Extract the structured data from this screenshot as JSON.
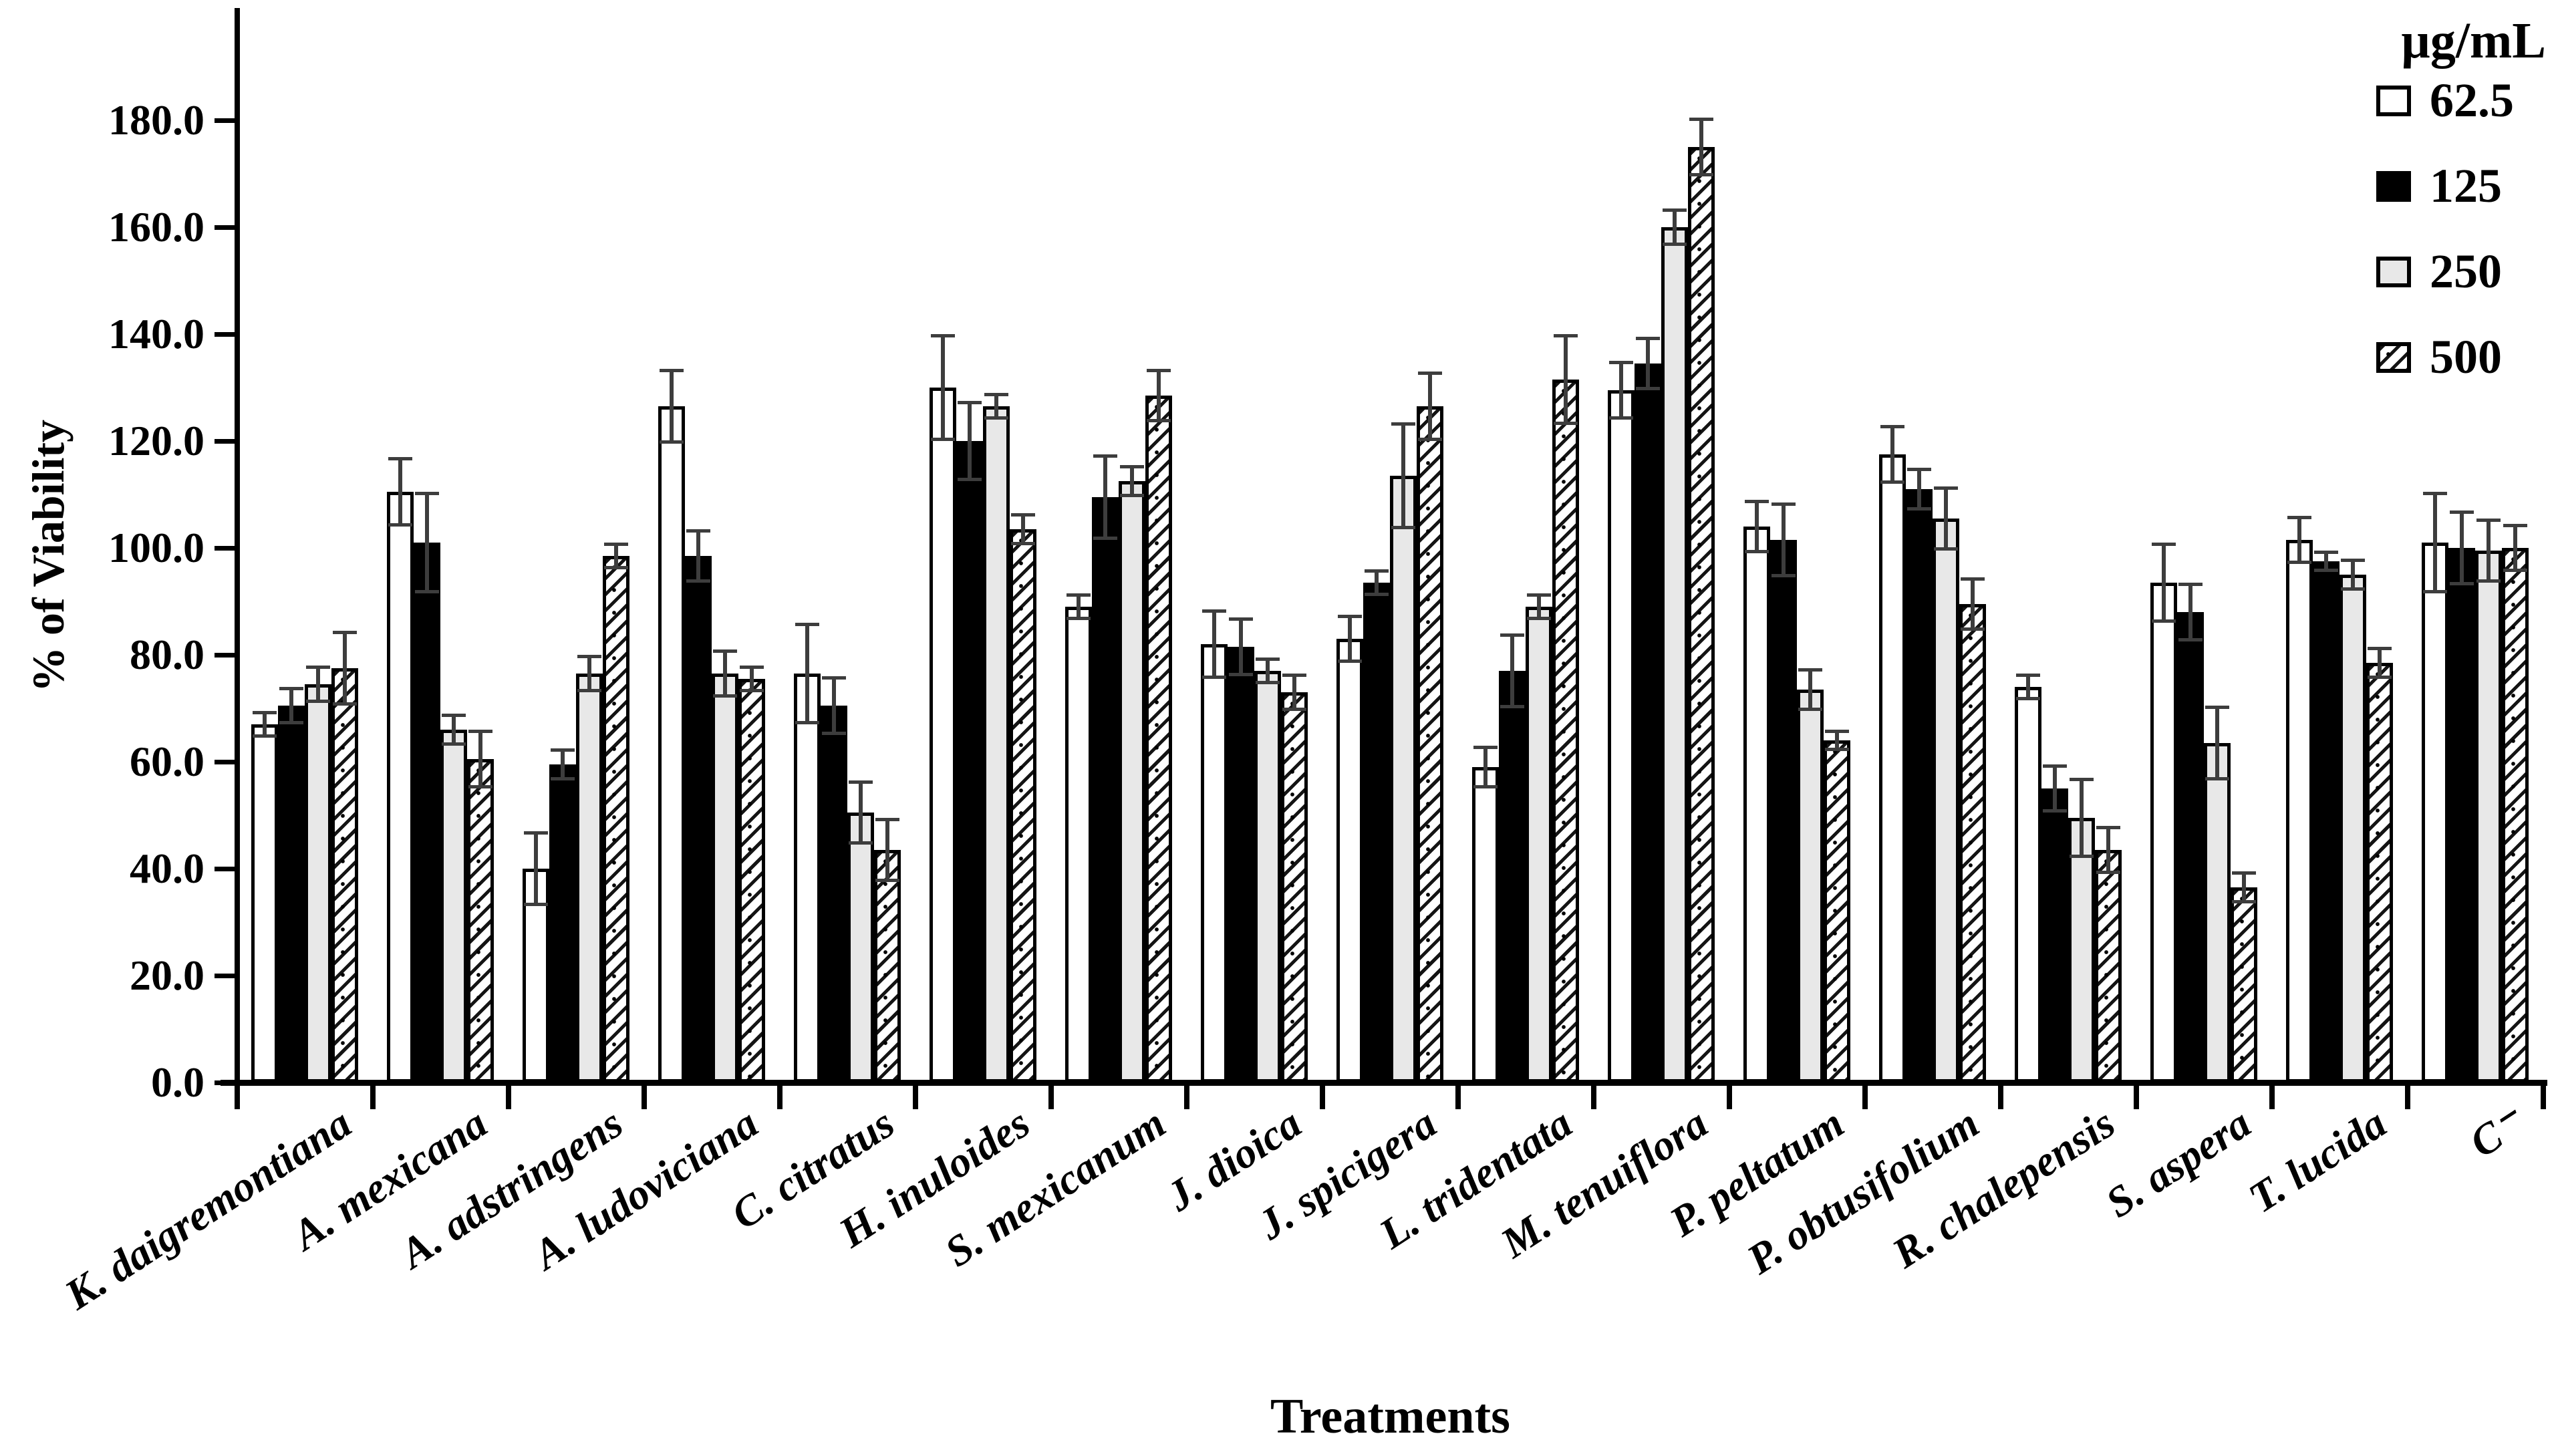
{
  "figure": {
    "y_axis_title": "% of Viability",
    "x_axis_title": "Treatments",
    "legend_title": "µg/mL"
  },
  "chart_data": {
    "type": "bar",
    "title": "",
    "xlabel": "Treatments",
    "ylabel": "% of Viability",
    "ylim": [
      0,
      195
    ],
    "ytick_interval": 20,
    "ytick_labels": [
      "0.0",
      "20.0",
      "40.0",
      "60.0",
      "80.0",
      "100.0",
      "120.0",
      "140.0",
      "160.0",
      "180.0"
    ],
    "grid": false,
    "legend_position": "top-right",
    "legend_title": "µg/mL",
    "error_bars": true,
    "categories": [
      "K. daigremontiana",
      "A. mexicana",
      "A. adstringens",
      "A. ludoviciana",
      "C. citratus",
      "H. inuloides",
      "S. mexicanum",
      "J. dioica",
      "J. spicigera",
      "L. tridentata",
      "M. tenuiflora",
      "P. peltatum",
      "P. obtusifolium",
      "R. chalepensis",
      "S. aspera",
      "T. lucida",
      "C⁻"
    ],
    "series": [
      {
        "name": "62.5",
        "pattern": "white",
        "values": [
          67,
          110.5,
          40,
          126.5,
          76.5,
          130,
          89,
          82,
          83,
          59,
          129.5,
          104,
          117.5,
          74,
          93.5,
          101.5,
          101
        ],
        "errors": [
          2.5,
          6.5,
          7,
          7,
          9.5,
          10,
          2.5,
          6.5,
          4.5,
          4,
          5.5,
          5,
          5.5,
          2.5,
          7.5,
          4.5,
          9.5
        ]
      },
      {
        "name": "125",
        "pattern": "black",
        "values": [
          70.5,
          101,
          59.5,
          98.5,
          70.5,
          120,
          109.5,
          81.5,
          93.5,
          77,
          134.5,
          101.5,
          111,
          55,
          88,
          97.5,
          100
        ],
        "errors": [
          3.5,
          9.5,
          3,
          5,
          5.5,
          7.5,
          8,
          5.5,
          2.5,
          7,
          5,
          7,
          4,
          4.5,
          5.5,
          2,
          7
        ]
      },
      {
        "name": "250",
        "pattern": "lightgray",
        "values": [
          74.5,
          66,
          76.5,
          76.5,
          50.5,
          126.5,
          112.5,
          77,
          113.5,
          89,
          160,
          73.5,
          105.5,
          49.5,
          63.5,
          95,
          99.5
        ],
        "errors": [
          3.5,
          3,
          3.5,
          4.5,
          6,
          2.5,
          3,
          2.5,
          10,
          2.5,
          3.5,
          4,
          6,
          7.5,
          7,
          3,
          6
        ]
      },
      {
        "name": "500",
        "pattern": "hatched",
        "values": [
          77.5,
          60.5,
          98.5,
          75.5,
          43.5,
          103.5,
          128.5,
          73,
          126.5,
          131.5,
          175,
          64,
          89.5,
          43.5,
          36.5,
          78.5,
          100
        ],
        "errors": [
          7,
          5.5,
          2.5,
          2.5,
          6,
          3,
          5,
          3.5,
          6.5,
          8.5,
          5.5,
          2,
          5,
          4.5,
          3,
          3,
          4.5
        ]
      }
    ],
    "colors": {
      "bar_white": "#ffffff",
      "bar_black": "#000000",
      "bar_lightgray": "#e8e8e8",
      "hatch_foreground": "#141414",
      "error_bar": "#3d3d3d",
      "axis": "#000000"
    }
  }
}
